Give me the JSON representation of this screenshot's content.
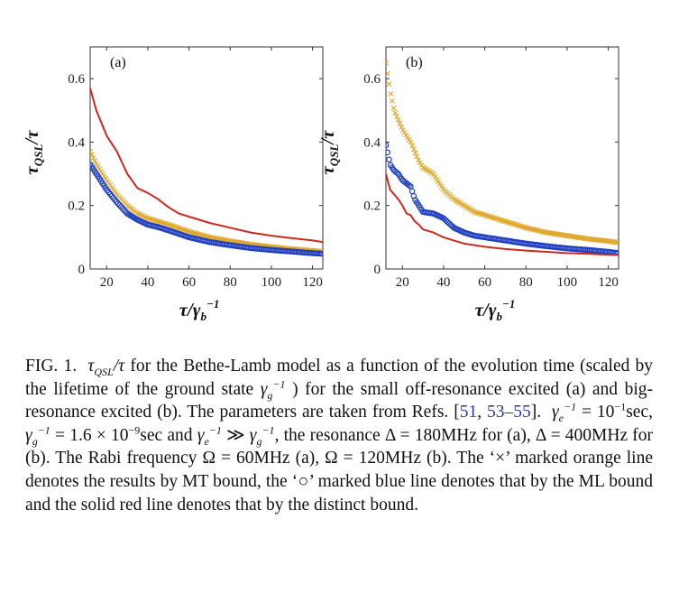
{
  "chart_data": [
    {
      "type": "line",
      "panel_label": "(a)",
      "xlabel": "τ/γb−1",
      "ylabel": "τQSL/τ",
      "xlim": [
        12,
        125
      ],
      "ylim": [
        0,
        0.7
      ],
      "xticks": [
        20,
        40,
        60,
        80,
        100,
        120
      ],
      "yticks": [
        0,
        0.2,
        0.4,
        0.6
      ],
      "ytick_labels": [
        "0",
        "0.2",
        "0.4",
        "0.6"
      ],
      "grid": false,
      "series": [
        {
          "marker": "x",
          "color": "#e0a82e",
          "x": [
            12,
            15,
            20,
            25,
            30,
            35,
            40,
            45,
            50,
            60,
            70,
            80,
            90,
            100,
            110,
            120,
            125
          ],
          "y": [
            0.37,
            0.33,
            0.28,
            0.235,
            0.2,
            0.175,
            0.16,
            0.15,
            0.14,
            0.118,
            0.1,
            0.088,
            0.078,
            0.07,
            0.063,
            0.058,
            0.055
          ]
        },
        {
          "marker": "o",
          "color": "#1f3fbf",
          "x": [
            12,
            15,
            20,
            25,
            30,
            35,
            40,
            45,
            50,
            60,
            70,
            80,
            90,
            100,
            110,
            120,
            125
          ],
          "y": [
            0.33,
            0.3,
            0.25,
            0.21,
            0.175,
            0.155,
            0.14,
            0.132,
            0.122,
            0.1,
            0.085,
            0.075,
            0.066,
            0.06,
            0.055,
            0.05,
            0.048
          ]
        },
        {
          "marker": "none",
          "color": "#cc2a1e",
          "x": [
            12,
            15,
            20,
            25,
            30,
            35,
            40,
            45,
            50,
            55,
            60,
            70,
            80,
            90,
            100,
            110,
            120,
            125
          ],
          "y": [
            0.57,
            0.5,
            0.42,
            0.37,
            0.3,
            0.255,
            0.24,
            0.22,
            0.195,
            0.175,
            0.165,
            0.145,
            0.13,
            0.115,
            0.105,
            0.097,
            0.09,
            0.085
          ]
        }
      ]
    },
    {
      "type": "line",
      "panel_label": "(b)",
      "xlabel": "τ/γb−1",
      "ylabel": "τQSL/τ",
      "xlim": [
        12,
        125
      ],
      "ylim": [
        0,
        0.7
      ],
      "xticks": [
        20,
        40,
        60,
        80,
        100,
        120
      ],
      "yticks": [
        0,
        0.2,
        0.4,
        0.6
      ],
      "ytick_labels": [
        "0",
        "0.2",
        "0.4",
        "0.6"
      ],
      "grid": false,
      "series": [
        {
          "marker": "x",
          "color": "#e0a82e",
          "x": [
            12,
            14,
            16,
            18,
            20,
            24,
            28,
            30,
            35,
            40,
            45,
            50,
            55,
            60,
            70,
            80,
            90,
            100,
            110,
            120,
            125
          ],
          "y": [
            0.65,
            0.56,
            0.5,
            0.47,
            0.44,
            0.4,
            0.34,
            0.32,
            0.3,
            0.25,
            0.22,
            0.2,
            0.18,
            0.17,
            0.15,
            0.13,
            0.115,
            0.105,
            0.095,
            0.088,
            0.083
          ]
        },
        {
          "marker": "o",
          "color": "#1f3fbf",
          "x": [
            12,
            14,
            16,
            18,
            20,
            22,
            24,
            26,
            28,
            30,
            35,
            40,
            45,
            50,
            55,
            60,
            70,
            80,
            90,
            100,
            110,
            120,
            125
          ],
          "y": [
            0.39,
            0.33,
            0.31,
            0.3,
            0.28,
            0.27,
            0.26,
            0.22,
            0.2,
            0.18,
            0.175,
            0.16,
            0.13,
            0.115,
            0.105,
            0.1,
            0.09,
            0.08,
            0.072,
            0.065,
            0.06,
            0.054,
            0.05
          ]
        },
        {
          "marker": "none",
          "color": "#cc2a1e",
          "x": [
            12,
            14,
            16,
            18,
            20,
            22,
            24,
            26,
            28,
            30,
            35,
            40,
            45,
            50,
            55,
            60,
            70,
            80,
            90,
            100,
            110,
            120,
            125
          ],
          "y": [
            0.3,
            0.25,
            0.235,
            0.22,
            0.2,
            0.175,
            0.17,
            0.15,
            0.14,
            0.125,
            0.115,
            0.1,
            0.09,
            0.08,
            0.075,
            0.07,
            0.063,
            0.058,
            0.054,
            0.05,
            0.048,
            0.045,
            0.044
          ]
        }
      ]
    }
  ],
  "caption": {
    "fig": "FIG. 1.",
    "sym_tau_qsl_main": "τ",
    "sym_tau_qsl_sub": "QSL",
    "sym_over_tau": "/τ",
    "t1": "for the Bethe-Lamb model as a function of the evolution time (scaled by the lifetime of the ground state",
    "sym_gamma": "γ",
    "sub_g": "g",
    "sub_e": "e",
    "sup_m1": "−1",
    "t2": ") for the small off-resonance excited (a) and big-resonance excited (b). The parameters are taken from Refs. [",
    "ref1": "51",
    "ref_sep": ",",
    "ref2": "53",
    "ref_dash": "–",
    "ref3": "55",
    "t3": "].",
    "t4": "= 10",
    "t5": "sec,",
    "t6": "= 1.6 × 10",
    "sup_m9": "−9",
    "t7": "sec and",
    "t8": "≫",
    "t9": ", the resonance Δ = 180MHz for (a), Δ = 400MHz for (b). The Rabi frequency Ω = 60MHz (a), Ω = 120MHz (b). The ‘×’ marked orange line denotes the results by MT bound, the ‘○’ marked blue line denotes that by the ML bound and the solid red line denotes that by the distinct bound."
  }
}
